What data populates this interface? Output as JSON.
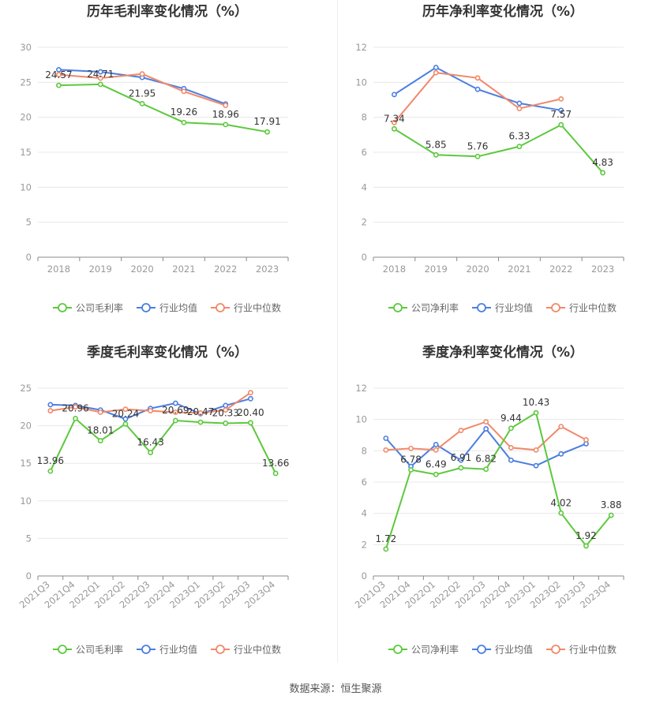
{
  "source_text": "数据来源：恒生聚源",
  "colors": {
    "company": "#5cc93c",
    "industry_avg": "#4a7ee0",
    "industry_median": "#f0896a",
    "axis": "#999999",
    "grid": "#e8e8e8",
    "title": "#333333",
    "label": "#333333"
  },
  "chart_data": [
    {
      "type": "line",
      "title": "历年毛利率变化情况（%）",
      "categories": [
        "2018",
        "2019",
        "2020",
        "2021",
        "2022",
        "2023"
      ],
      "ylim": [
        0,
        30
      ],
      "yticks": [
        "0",
        "5",
        "10",
        "15",
        "20",
        "25",
        "30"
      ],
      "grid": true,
      "legend_position": "bottom",
      "rotate_x_labels": false,
      "series": [
        {
          "name": "公司毛利率",
          "values": [
            24.57,
            24.71,
            21.95,
            19.26,
            18.96,
            17.91
          ],
          "labels": [
            "24.57",
            "24.71",
            "21.95",
            "19.26",
            "18.96",
            "17.91"
          ]
        },
        {
          "name": "行业均值",
          "values": [
            26.8,
            26.5,
            25.7,
            24.1,
            21.9,
            null
          ]
        },
        {
          "name": "行业中位数",
          "values": [
            26.1,
            25.6,
            26.2,
            23.7,
            21.7,
            null
          ]
        }
      ]
    },
    {
      "type": "line",
      "title": "历年净利率变化情况（%）",
      "categories": [
        "2018",
        "2019",
        "2020",
        "2021",
        "2022",
        "2023"
      ],
      "ylim": [
        0,
        12
      ],
      "yticks": [
        "0",
        "2",
        "4",
        "6",
        "8",
        "10",
        "12"
      ],
      "grid": true,
      "legend_position": "bottom",
      "rotate_x_labels": false,
      "series": [
        {
          "name": "公司净利率",
          "values": [
            7.34,
            5.85,
            5.76,
            6.33,
            7.57,
            4.83
          ],
          "labels": [
            "7.34",
            "5.85",
            "5.76",
            "6.33",
            "7.57",
            "4.83"
          ]
        },
        {
          "name": "行业均值",
          "values": [
            9.3,
            10.85,
            9.6,
            8.8,
            8.4,
            null
          ]
        },
        {
          "name": "行业中位数",
          "values": [
            7.7,
            10.55,
            10.25,
            8.5,
            9.05,
            null
          ]
        }
      ]
    },
    {
      "type": "line",
      "title": "季度毛利率变化情况（%）",
      "categories": [
        "2021Q3",
        "2021Q4",
        "2022Q1",
        "2022Q2",
        "2022Q3",
        "2022Q4",
        "2023Q1",
        "2023Q2",
        "2023Q3",
        "2023Q4"
      ],
      "ylim": [
        0,
        25
      ],
      "yticks": [
        "0",
        "5",
        "10",
        "15",
        "20",
        "25"
      ],
      "grid": true,
      "legend_position": "bottom",
      "rotate_x_labels": true,
      "series": [
        {
          "name": "公司毛利率",
          "values": [
            13.96,
            20.96,
            18.01,
            20.24,
            16.43,
            20.69,
            20.47,
            20.33,
            20.4,
            13.66
          ],
          "labels": [
            "13.96",
            "20.96",
            "18.01",
            "20.24",
            "16.43",
            "20.69",
            "20.47",
            "20.33",
            "20.40",
            "13.66"
          ]
        },
        {
          "name": "行业均值",
          "values": [
            22.8,
            22.7,
            22.1,
            20.9,
            22.3,
            23.0,
            21.6,
            22.7,
            23.6,
            null
          ]
        },
        {
          "name": "行业中位数",
          "values": [
            22.0,
            22.5,
            21.8,
            22.2,
            22.0,
            21.8,
            21.7,
            22.1,
            24.4,
            null
          ]
        }
      ]
    },
    {
      "type": "line",
      "title": "季度净利率变化情况（%）",
      "categories": [
        "2021Q3",
        "2021Q4",
        "2022Q1",
        "2022Q2",
        "2022Q3",
        "2022Q4",
        "2023Q1",
        "2023Q2",
        "2023Q3",
        "2023Q4"
      ],
      "ylim": [
        0,
        12
      ],
      "yticks": [
        "0",
        "2",
        "4",
        "6",
        "8",
        "10",
        "12"
      ],
      "grid": true,
      "legend_position": "bottom",
      "rotate_x_labels": true,
      "series": [
        {
          "name": "公司净利率",
          "values": [
            1.72,
            6.78,
            6.49,
            6.91,
            6.82,
            9.44,
            10.43,
            4.02,
            1.92,
            3.88
          ],
          "labels": [
            "1.72",
            "6.78",
            "6.49",
            "6.91",
            "6.82",
            "9.44",
            "10.43",
            "4.02",
            "1.92",
            "3.88"
          ]
        },
        {
          "name": "行业均值",
          "values": [
            8.8,
            7.0,
            8.4,
            7.4,
            9.4,
            7.4,
            7.05,
            7.8,
            8.45,
            null
          ]
        },
        {
          "name": "行业中位数",
          "values": [
            8.05,
            8.15,
            8.05,
            9.3,
            9.85,
            8.2,
            8.05,
            9.55,
            8.7,
            null
          ]
        }
      ]
    }
  ]
}
